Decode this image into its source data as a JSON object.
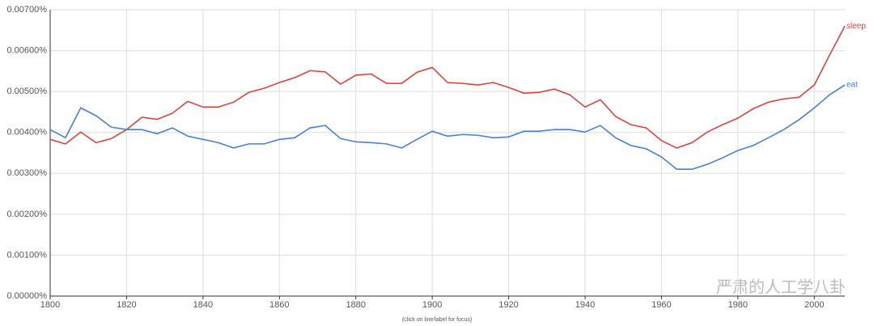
{
  "chart_data": {
    "type": "line",
    "x": [
      1800,
      1804,
      1808,
      1812,
      1816,
      1820,
      1824,
      1828,
      1832,
      1836,
      1840,
      1844,
      1848,
      1852,
      1856,
      1860,
      1864,
      1868,
      1872,
      1876,
      1880,
      1884,
      1888,
      1892,
      1896,
      1900,
      1904,
      1908,
      1912,
      1916,
      1920,
      1924,
      1928,
      1932,
      1936,
      1940,
      1944,
      1948,
      1952,
      1956,
      1960,
      1964,
      1968,
      1972,
      1976,
      1980,
      1984,
      1988,
      1992,
      1996,
      2000,
      2004,
      2008
    ],
    "series": [
      {
        "name": "sleep",
        "color": "#d9453d",
        "values": [
          0.00383,
          0.00372,
          0.00401,
          0.00375,
          0.00385,
          0.00407,
          0.00437,
          0.00432,
          0.00447,
          0.00476,
          0.00462,
          0.00462,
          0.00474,
          0.00498,
          0.00508,
          0.00522,
          0.00534,
          0.00551,
          0.00548,
          0.00518,
          0.0054,
          0.00543,
          0.0052,
          0.0052,
          0.00547,
          0.00559,
          0.00522,
          0.0052,
          0.00516,
          0.00522,
          0.0051,
          0.00496,
          0.00498,
          0.00506,
          0.00492,
          0.00462,
          0.0048,
          0.00439,
          0.00419,
          0.00411,
          0.0038,
          0.00362,
          0.00375,
          0.00401,
          0.00419,
          0.00435,
          0.00458,
          0.00474,
          0.00482,
          0.00486,
          0.00516,
          0.00589,
          0.0066
        ]
      },
      {
        "name": "eat",
        "color": "#4a7fd6",
        "values": [
          0.00407,
          0.00387,
          0.0046,
          0.00441,
          0.00413,
          0.00407,
          0.00407,
          0.00397,
          0.00411,
          0.00391,
          0.00383,
          0.00375,
          0.00362,
          0.00372,
          0.00372,
          0.00383,
          0.00387,
          0.00411,
          0.00417,
          0.00385,
          0.00377,
          0.00375,
          0.00372,
          0.00362,
          0.00383,
          0.00403,
          0.00391,
          0.00395,
          0.00393,
          0.00387,
          0.00389,
          0.00403,
          0.00403,
          0.00407,
          0.00407,
          0.00401,
          0.00417,
          0.00387,
          0.00368,
          0.0036,
          0.0034,
          0.0031,
          0.0031,
          0.00322,
          0.00338,
          0.00356,
          0.00368,
          0.00387,
          0.00407,
          0.00431,
          0.0046,
          0.00492,
          0.00516
        ]
      }
    ],
    "xlim": [
      1800,
      2008
    ],
    "xticks": [
      1800,
      1820,
      1840,
      1860,
      1880,
      1900,
      1920,
      1940,
      1960,
      1980,
      2000
    ],
    "ylim": [
      0,
      0.007
    ],
    "yticks": [
      {
        "value": 0,
        "label": "0.00000%"
      },
      {
        "value": 0.001,
        "label": "0.00100%"
      },
      {
        "value": 0.002,
        "label": "0.00200%"
      },
      {
        "value": 0.003,
        "label": "0.00300%"
      },
      {
        "value": 0.004,
        "label": "0.00400%"
      },
      {
        "value": 0.005,
        "label": "0.00500%"
      },
      {
        "value": 0.006,
        "label": "0.00600%"
      },
      {
        "value": 0.007,
        "label": "0.00700%"
      }
    ],
    "grid": true,
    "footnote": "(click on line/label for focus)",
    "watermark": "严肃的人工学八卦"
  }
}
